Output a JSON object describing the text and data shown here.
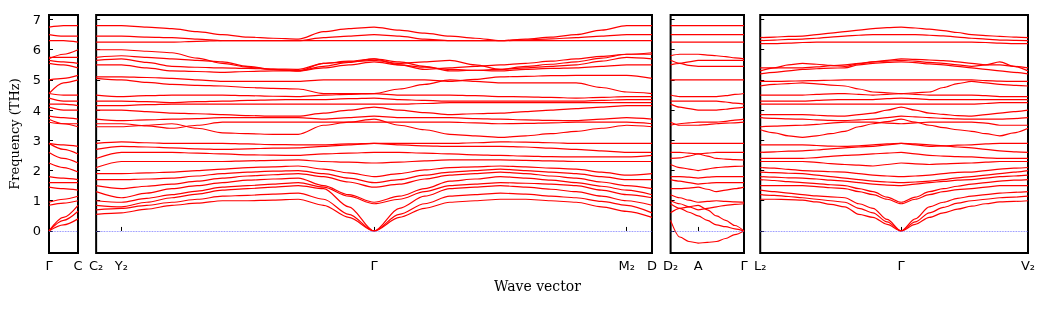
{
  "chart_data": [
    {
      "type": "line",
      "ylabel": "Frequency (THz)",
      "marker": "none",
      "categories": [
        "Γ",
        null,
        "C"
      ],
      "ylim": [
        -0.73,
        7.15
      ],
      "yticks": [
        0,
        1,
        2,
        3,
        4,
        5,
        6,
        7
      ],
      "ref_lines": [
        {
          "axis": "y",
          "value": 0,
          "color": "#6666ff",
          "line_style": "dotted"
        }
      ],
      "series": [
        {
          "color": "#ff0000",
          "values": [
            0,
            0.2,
            0.4
          ]
        },
        {
          "color": "#ff0000",
          "values": [
            0,
            0.35,
            0.65
          ]
        },
        {
          "color": "#ff0000",
          "values": [
            0,
            0.45,
            0.85
          ]
        },
        {
          "color": "#ff0000",
          "values": [
            0.85,
            0.92,
            1.0
          ]
        },
        {
          "color": "#ff0000",
          "values": [
            0.95,
            1.05,
            1.15
          ]
        },
        {
          "color": "#ff0000",
          "values": [
            1.45,
            1.4,
            1.35
          ]
        },
        {
          "color": "#ff0000",
          "values": [
            1.6,
            1.6,
            1.6
          ]
        },
        {
          "color": "#ff0000",
          "values": [
            1.8,
            1.75,
            1.7
          ]
        },
        {
          "color": "#ff0000",
          "values": [
            2.25,
            2.1,
            1.95
          ]
        },
        {
          "color": "#ff0000",
          "values": [
            2.6,
            2.4,
            2.25
          ]
        },
        {
          "color": "#ff0000",
          "values": [
            2.9,
            2.7,
            2.55
          ]
        },
        {
          "color": "#ff0000",
          "values": [
            2.9,
            2.85,
            2.8
          ]
        },
        {
          "color": "#ff0000",
          "values": [
            3.7,
            3.55,
            3.45
          ]
        },
        {
          "color": "#ff0000",
          "values": [
            3.6,
            3.55,
            3.55
          ]
        },
        {
          "color": "#ff0000",
          "values": [
            3.8,
            3.75,
            3.7
          ]
        },
        {
          "color": "#ff0000",
          "values": [
            4.1,
            4.0,
            4.0
          ]
        },
        {
          "color": "#ff0000",
          "values": [
            4.2,
            4.2,
            4.15
          ]
        },
        {
          "color": "#ff0000",
          "values": [
            4.4,
            4.3,
            4.3
          ]
        },
        {
          "color": "#ff0000",
          "values": [
            4.55,
            4.5,
            4.5
          ]
        },
        {
          "color": "#ff0000",
          "values": [
            4.55,
            4.9,
            5.0
          ]
        },
        {
          "color": "#ff0000",
          "values": [
            5.0,
            5.05,
            5.15
          ]
        },
        {
          "color": "#ff0000",
          "values": [
            5.55,
            5.5,
            5.4
          ]
        },
        {
          "color": "#ff0000",
          "values": [
            5.65,
            5.6,
            5.55
          ]
        },
        {
          "color": "#ff0000",
          "values": [
            5.75,
            5.75,
            5.75
          ]
        },
        {
          "color": "#ff0000",
          "values": [
            5.7,
            5.85,
            6.0
          ]
        },
        {
          "color": "#ff0000",
          "values": [
            6.3,
            6.3,
            6.25
          ]
        },
        {
          "color": "#ff0000",
          "values": [
            6.5,
            6.45,
            6.45
          ]
        },
        {
          "color": "#ff0000",
          "values": [
            6.75,
            6.8,
            6.8
          ]
        }
      ]
    },
    {
      "type": "line",
      "xlabel": "Wave vector",
      "marker": "none",
      "tick_labels": "x",
      "categories": [
        "C₂",
        "Y₂",
        null,
        null,
        null,
        null,
        null,
        null,
        null,
        null,
        null,
        "Γ",
        null,
        null,
        null,
        null,
        null,
        null,
        null,
        null,
        null,
        "M₂",
        "D"
      ],
      "ylim": [
        -0.73,
        7.15
      ],
      "yticks": [
        0,
        1,
        2,
        3,
        4,
        5,
        6,
        7
      ],
      "ref_lines": [
        {
          "axis": "y",
          "value": 0,
          "color": "#6666ff",
          "line_style": "dotted"
        }
      ],
      "series": [
        {
          "color": "#ff0000",
          "values": [
            0.55,
            0.6,
            0.72,
            0.85,
            0.92,
            1.0,
            1.0,
            1.02,
            1.05,
            0.85,
            0.45,
            0,
            0.45,
            0.75,
            0.95,
            1.0,
            1.05,
            1.05,
            1.0,
            0.95,
            0.8,
            0.65,
            0.45
          ]
        },
        {
          "color": "#ff0000",
          "values": [
            0.7,
            0.75,
            0.85,
            0.95,
            1.05,
            1.15,
            1.18,
            1.22,
            1.25,
            1.05,
            0.55,
            0,
            0.55,
            0.9,
            1.15,
            1.2,
            1.25,
            1.22,
            1.15,
            1.1,
            0.98,
            0.85,
            0.6
          ]
        },
        {
          "color": "#ff0000",
          "values": [
            0.85,
            0.8,
            0.95,
            1.1,
            1.22,
            1.35,
            1.4,
            1.45,
            1.5,
            1.4,
            0.8,
            0,
            0.75,
            1.15,
            1.4,
            1.45,
            1.5,
            1.45,
            1.38,
            1.3,
            1.15,
            1.0,
            0.85
          ]
        },
        {
          "color": "#ff0000",
          "values": [
            1.0,
            0.95,
            1.08,
            1.2,
            1.32,
            1.45,
            1.5,
            1.55,
            1.6,
            1.45,
            1.15,
            0.9,
            1.05,
            1.3,
            1.5,
            1.55,
            1.6,
            1.58,
            1.55,
            1.5,
            1.35,
            1.2,
            1.1
          ]
        },
        {
          "color": "#ff0000",
          "values": [
            1.3,
            1.1,
            1.25,
            1.4,
            1.5,
            1.6,
            1.68,
            1.72,
            1.75,
            1.5,
            1.2,
            0.95,
            1.15,
            1.4,
            1.65,
            1.72,
            1.8,
            1.75,
            1.68,
            1.6,
            1.48,
            1.35,
            1.2
          ]
        },
        {
          "color": "#ff0000",
          "values": [
            1.5,
            1.4,
            1.48,
            1.55,
            1.65,
            1.75,
            1.82,
            1.86,
            1.9,
            1.8,
            1.62,
            1.45,
            1.55,
            1.72,
            1.85,
            1.9,
            1.95,
            1.9,
            1.82,
            1.75,
            1.62,
            1.5,
            1.4
          ]
        },
        {
          "color": "#ff0000",
          "values": [
            1.7,
            1.7,
            1.72,
            1.75,
            1.82,
            1.9,
            1.95,
            1.98,
            2.0,
            1.9,
            1.75,
            1.6,
            1.7,
            1.85,
            1.95,
            2.0,
            2.05,
            2.0,
            1.95,
            1.9,
            1.8,
            1.7,
            1.7
          ]
        },
        {
          "color": "#ff0000",
          "values": [
            1.9,
            1.9,
            1.92,
            1.95,
            2.0,
            2.05,
            2.1,
            2.12,
            2.15,
            2.05,
            1.92,
            1.8,
            1.9,
            2.02,
            2.1,
            2.12,
            2.15,
            2.12,
            2.08,
            2.05,
            1.95,
            1.85,
            1.9
          ]
        },
        {
          "color": "#ff0000",
          "values": [
            2.1,
            2.3,
            2.3,
            2.3,
            2.3,
            2.3,
            2.32,
            2.34,
            2.35,
            2.3,
            2.28,
            2.25,
            2.28,
            2.32,
            2.35,
            2.35,
            2.35,
            2.34,
            2.32,
            2.3,
            2.3,
            2.3,
            2.3
          ]
        },
        {
          "color": "#ff0000",
          "values": [
            2.4,
            2.6,
            2.6,
            2.6,
            2.58,
            2.55,
            2.52,
            2.51,
            2.5,
            2.55,
            2.58,
            2.6,
            2.6,
            2.58,
            2.55,
            2.52,
            2.5,
            2.48,
            2.46,
            2.45,
            2.45,
            2.45,
            2.5
          ]
        },
        {
          "color": "#ff0000",
          "values": [
            2.7,
            2.8,
            2.78,
            2.75,
            2.72,
            2.7,
            2.72,
            2.74,
            2.75,
            2.8,
            2.85,
            2.9,
            2.85,
            2.82,
            2.8,
            2.8,
            2.8,
            2.78,
            2.74,
            2.7,
            2.65,
            2.6,
            2.6
          ]
        },
        {
          "color": "#ff0000",
          "values": [
            2.9,
            2.95,
            2.92,
            2.9,
            2.9,
            2.9,
            2.88,
            2.86,
            2.85,
            2.85,
            2.88,
            2.9,
            2.9,
            2.9,
            2.9,
            2.92,
            2.95,
            2.94,
            2.92,
            2.9,
            2.9,
            2.9,
            2.9
          ]
        },
        {
          "color": "#ff0000",
          "values": [
            3.45,
            3.45,
            3.5,
            3.55,
            3.4,
            3.25,
            3.22,
            3.2,
            3.2,
            3.5,
            3.6,
            3.7,
            3.5,
            3.35,
            3.2,
            3.15,
            3.1,
            3.15,
            3.22,
            3.3,
            3.4,
            3.5,
            3.45
          ]
        },
        {
          "color": "#ff0000",
          "values": [
            3.55,
            3.55,
            3.48,
            3.4,
            3.5,
            3.6,
            3.6,
            3.6,
            3.6,
            3.6,
            3.6,
            3.6,
            3.6,
            3.6,
            3.6,
            3.58,
            3.55,
            3.56,
            3.58,
            3.6,
            3.6,
            3.6,
            3.55
          ]
        },
        {
          "color": "#ff0000",
          "values": [
            3.7,
            3.65,
            3.68,
            3.7,
            3.72,
            3.75,
            3.75,
            3.75,
            3.75,
            3.7,
            3.75,
            3.8,
            3.75,
            3.75,
            3.75,
            3.72,
            3.7,
            3.68,
            3.66,
            3.65,
            3.7,
            3.75,
            3.7
          ]
        },
        {
          "color": "#ff0000",
          "values": [
            4.0,
            4.0,
            3.95,
            3.9,
            3.88,
            3.85,
            3.82,
            3.8,
            3.8,
            3.9,
            4.0,
            4.1,
            4.0,
            3.92,
            3.85,
            3.88,
            3.9,
            3.95,
            4.0,
            4.05,
            4.1,
            4.15,
            4.15
          ]
        },
        {
          "color": "#ff0000",
          "values": [
            4.15,
            4.15,
            4.18,
            4.2,
            4.2,
            4.2,
            4.2,
            4.2,
            4.2,
            4.2,
            4.2,
            4.2,
            4.2,
            4.22,
            4.25,
            4.25,
            4.25,
            4.25,
            4.25,
            4.25,
            4.25,
            4.25,
            4.25
          ]
        },
        {
          "color": "#ff0000",
          "values": [
            4.3,
            4.3,
            4.28,
            4.25,
            4.28,
            4.3,
            4.32,
            4.34,
            4.35,
            4.35,
            4.38,
            4.4,
            4.35,
            4.32,
            4.3,
            4.3,
            4.3,
            4.3,
            4.3,
            4.3,
            4.32,
            4.35,
            4.35
          ]
        },
        {
          "color": "#ff0000",
          "values": [
            4.5,
            4.45,
            4.48,
            4.5,
            4.5,
            4.5,
            4.48,
            4.46,
            4.45,
            4.5,
            4.52,
            4.55,
            4.5,
            4.5,
            4.5,
            4.48,
            4.45,
            4.44,
            4.42,
            4.4,
            4.42,
            4.45,
            4.45
          ]
        },
        {
          "color": "#ff0000",
          "values": [
            5.05,
            5.0,
            4.92,
            4.85,
            4.82,
            4.8,
            4.75,
            4.72,
            4.7,
            4.55,
            4.55,
            4.55,
            4.7,
            4.85,
            5.0,
            4.95,
            4.9,
            4.9,
            4.9,
            4.9,
            4.75,
            4.6,
            4.55
          ]
        },
        {
          "color": "#ff0000",
          "values": [
            5.1,
            5.1,
            5.08,
            5.05,
            5.0,
            4.95,
            4.95,
            4.95,
            4.95,
            5.0,
            5.0,
            5.0,
            5.0,
            5.0,
            4.95,
            5.02,
            5.1,
            5.12,
            5.14,
            5.15,
            5.15,
            5.15,
            5.05
          ]
        },
        {
          "color": "#ff0000",
          "values": [
            5.5,
            5.5,
            5.4,
            5.3,
            5.28,
            5.25,
            5.28,
            5.3,
            5.3,
            5.4,
            5.5,
            5.6,
            5.5,
            5.42,
            5.35,
            5.32,
            5.3,
            5.35,
            5.38,
            5.4,
            5.45,
            5.5,
            5.5
          ]
        },
        {
          "color": "#ff0000",
          "values": [
            5.65,
            5.7,
            5.58,
            5.45,
            5.42,
            5.4,
            5.38,
            5.36,
            5.35,
            5.55,
            5.6,
            5.65,
            5.55,
            5.6,
            5.65,
            5.5,
            5.35,
            5.4,
            5.45,
            5.5,
            5.62,
            5.75,
            5.7
          ]
        },
        {
          "color": "#ff0000",
          "values": [
            5.75,
            5.8,
            5.75,
            5.7,
            5.65,
            5.6,
            5.45,
            5.35,
            5.3,
            5.55,
            5.62,
            5.7,
            5.6,
            5.45,
            5.3,
            5.32,
            5.35,
            5.45,
            5.52,
            5.6,
            5.72,
            5.85,
            5.85
          ]
        },
        {
          "color": "#ff0000",
          "values": [
            6.0,
            6.0,
            5.95,
            5.9,
            5.72,
            5.55,
            5.42,
            5.35,
            5.3,
            5.45,
            5.58,
            5.7,
            5.5,
            5.35,
            5.4,
            5.45,
            5.5,
            5.55,
            5.62,
            5.7,
            5.78,
            5.85,
            5.9
          ]
        },
        {
          "color": "#ff0000",
          "values": [
            6.25,
            6.25,
            6.25,
            6.25,
            6.28,
            6.3,
            6.3,
            6.3,
            6.3,
            6.3,
            6.3,
            6.3,
            6.3,
            6.3,
            6.3,
            6.3,
            6.3,
            6.3,
            6.3,
            6.3,
            6.3,
            6.3,
            6.3
          ]
        },
        {
          "color": "#ff0000",
          "values": [
            6.45,
            6.45,
            6.42,
            6.4,
            6.35,
            6.3,
            6.3,
            6.3,
            6.3,
            6.4,
            6.45,
            6.5,
            6.45,
            6.35,
            6.3,
            6.3,
            6.3,
            6.32,
            6.36,
            6.4,
            6.45,
            6.5,
            6.5
          ]
        },
        {
          "color": "#ff0000",
          "values": [
            6.8,
            6.8,
            6.75,
            6.7,
            6.6,
            6.5,
            6.42,
            6.38,
            6.35,
            6.6,
            6.7,
            6.75,
            6.65,
            6.55,
            6.45,
            6.38,
            6.3,
            6.35,
            6.42,
            6.5,
            6.65,
            6.8,
            6.8
          ]
        }
      ]
    },
    {
      "type": "line",
      "marker": "none",
      "tick_labels": "x",
      "categories": [
        "D₂",
        null,
        null,
        "A",
        null,
        null,
        null,
        null,
        "Γ"
      ],
      "ylim": [
        -0.73,
        7.15
      ],
      "yticks": [
        0,
        1,
        2,
        3,
        4,
        5,
        6,
        7
      ],
      "ref_lines": [
        {
          "axis": "y",
          "value": 0,
          "color": "#6666ff",
          "line_style": "dotted"
        }
      ],
      "series": [
        {
          "color": "#ff0000",
          "values": [
            0.35,
            -0.2,
            -0.35,
            -0.4,
            -0.38,
            -0.35,
            -0.25,
            -0.12,
            0
          ]
        },
        {
          "color": "#ff0000",
          "values": [
            0.6,
            0.75,
            0.8,
            0.85,
            0.7,
            0.5,
            0.35,
            0.18,
            0
          ]
        },
        {
          "color": "#ff0000",
          "values": [
            0.9,
            0.75,
            0.62,
            0.5,
            0.35,
            0.2,
            0.14,
            0.07,
            0
          ]
        },
        {
          "color": "#ff0000",
          "values": [
            1.0,
            0.9,
            0.8,
            0.7,
            0.75,
            0.8,
            0.85,
            0.88,
            0.9
          ]
        },
        {
          "color": "#ff0000",
          "values": [
            1.2,
            1.1,
            1.02,
            0.95,
            0.98,
            1.0,
            0.98,
            0.96,
            0.95
          ]
        },
        {
          "color": "#ff0000",
          "values": [
            1.4,
            1.4,
            1.42,
            1.45,
            1.38,
            1.3,
            1.35,
            1.4,
            1.45
          ]
        },
        {
          "color": "#ff0000",
          "values": [
            1.7,
            1.65,
            1.6,
            1.55,
            1.58,
            1.6,
            1.6,
            1.6,
            1.6
          ]
        },
        {
          "color": "#ff0000",
          "values": [
            1.8,
            1.8,
            1.78,
            1.75,
            1.78,
            1.8,
            1.8,
            1.8,
            1.8
          ]
        },
        {
          "color": "#ff0000",
          "values": [
            2.2,
            2.1,
            2.05,
            2.0,
            2.05,
            2.1,
            2.12,
            2.14,
            2.15
          ]
        },
        {
          "color": "#ff0000",
          "values": [
            2.4,
            2.42,
            2.48,
            2.55,
            2.48,
            2.4,
            2.38,
            2.36,
            2.35
          ]
        },
        {
          "color": "#ff0000",
          "values": [
            2.6,
            2.6,
            2.58,
            2.55,
            2.58,
            2.6,
            2.6,
            2.6,
            2.6
          ]
        },
        {
          "color": "#ff0000",
          "values": [
            2.9,
            2.9,
            2.9,
            2.9,
            2.9,
            2.9,
            2.9,
            2.9,
            2.9
          ]
        },
        {
          "color": "#ff0000",
          "values": [
            3.5,
            3.55,
            3.58,
            3.6,
            3.6,
            3.6,
            3.63,
            3.67,
            3.7
          ]
        },
        {
          "color": "#ff0000",
          "values": [
            3.6,
            3.5,
            3.5,
            3.5,
            3.52,
            3.55,
            3.57,
            3.58,
            3.6
          ]
        },
        {
          "color": "#ff0000",
          "values": [
            4.2,
            4.1,
            4.05,
            4.0,
            4.0,
            4.0,
            4.03,
            4.07,
            4.1
          ]
        },
        {
          "color": "#ff0000",
          "values": [
            4.3,
            4.3,
            4.3,
            4.3,
            4.3,
            4.3,
            4.27,
            4.23,
            4.2
          ]
        },
        {
          "color": "#ff0000",
          "values": [
            4.5,
            4.45,
            4.45,
            4.45,
            4.45,
            4.45,
            4.48,
            4.52,
            4.55
          ]
        },
        {
          "color": "#ff0000",
          "values": [
            5.0,
            5.0,
            5.0,
            5.0,
            5.0,
            5.0,
            5.0,
            5.0,
            5.0
          ]
        },
        {
          "color": "#ff0000",
          "values": [
            5.65,
            5.55,
            5.48,
            5.45,
            5.45,
            5.45,
            5.45,
            5.45,
            5.45
          ]
        },
        {
          "color": "#ff0000",
          "values": [
            5.5,
            5.55,
            5.6,
            5.65,
            5.65,
            5.65,
            5.65,
            5.65,
            5.65
          ]
        },
        {
          "color": "#ff0000",
          "values": [
            5.8,
            5.85,
            5.85,
            5.85,
            5.82,
            5.8,
            5.77,
            5.73,
            5.7
          ]
        },
        {
          "color": "#ff0000",
          "values": [
            6.25,
            6.25,
            6.25,
            6.25,
            6.25,
            6.25,
            6.25,
            6.25,
            6.25
          ]
        },
        {
          "color": "#ff0000",
          "values": [
            6.5,
            6.5,
            6.5,
            6.5,
            6.5,
            6.5,
            6.5,
            6.5,
            6.5
          ]
        },
        {
          "color": "#ff0000",
          "values": [
            6.8,
            6.8,
            6.8,
            6.8,
            6.8,
            6.8,
            6.8,
            6.8,
            6.8
          ]
        }
      ]
    },
    {
      "type": "line",
      "marker": "none",
      "tick_labels": "x",
      "categories": [
        "L₂",
        null,
        null,
        null,
        null,
        null,
        null,
        null,
        null,
        null,
        "Γ",
        null,
        null,
        null,
        null,
        null,
        null,
        null,
        null,
        "V₂"
      ],
      "ylim": [
        -0.73,
        7.15
      ],
      "yticks": [
        0,
        1,
        2,
        3,
        4,
        5,
        6,
        7
      ],
      "ref_lines": [
        {
          "axis": "y",
          "value": 0,
          "color": "#6666ff",
          "line_style": "dotted"
        }
      ],
      "series": [
        {
          "color": "#ff0000",
          "values": [
            1.05,
            1.05,
            1.04,
            1.02,
            0.96,
            0.88,
            0.8,
            0.55,
            0.45,
            0.22,
            0,
            0.22,
            0.45,
            0.6,
            0.72,
            0.82,
            0.9,
            0.96,
            0.98,
            1.0
          ]
        },
        {
          "color": "#ff0000",
          "values": [
            1.2,
            1.18,
            1.14,
            1.1,
            1.05,
            1.0,
            0.95,
            0.75,
            0.6,
            0.3,
            0,
            0.3,
            0.6,
            0.78,
            0.92,
            1.0,
            1.05,
            1.1,
            1.12,
            1.15
          ]
        },
        {
          "color": "#ff0000",
          "values": [
            1.35,
            1.3,
            1.25,
            1.2,
            1.16,
            1.13,
            1.1,
            0.9,
            0.75,
            0.38,
            0,
            0.4,
            0.8,
            0.95,
            1.08,
            1.15,
            1.2,
            1.25,
            1.28,
            1.3
          ]
        },
        {
          "color": "#ff0000",
          "values": [
            1.5,
            1.5,
            1.5,
            1.5,
            1.47,
            1.43,
            1.4,
            1.3,
            1.2,
            1.05,
            0.9,
            1.05,
            1.2,
            1.3,
            1.37,
            1.4,
            1.45,
            1.5,
            1.5,
            1.5
          ]
        },
        {
          "color": "#ff0000",
          "values": [
            1.7,
            1.67,
            1.63,
            1.6,
            1.57,
            1.53,
            1.5,
            1.4,
            1.3,
            1.12,
            0.95,
            1.12,
            1.3,
            1.4,
            1.48,
            1.55,
            1.6,
            1.65,
            1.68,
            1.7
          ]
        },
        {
          "color": "#ff0000",
          "values": [
            1.8,
            1.78,
            1.76,
            1.75,
            1.72,
            1.68,
            1.65,
            1.6,
            1.55,
            1.52,
            1.5,
            1.55,
            1.6,
            1.64,
            1.68,
            1.7,
            1.75,
            1.8,
            1.82,
            1.85
          ]
        },
        {
          "color": "#ff0000",
          "values": [
            1.95,
            1.93,
            1.91,
            1.9,
            1.85,
            1.8,
            1.75,
            1.7,
            1.65,
            1.62,
            1.6,
            1.62,
            1.65,
            1.7,
            1.76,
            1.8,
            1.85,
            1.9,
            1.95,
            2.0
          ]
        },
        {
          "color": "#ff0000",
          "values": [
            2.1,
            2.08,
            2.04,
            2.0,
            1.98,
            1.96,
            1.95,
            1.9,
            1.85,
            1.82,
            1.8,
            1.82,
            1.85,
            1.9,
            1.94,
            1.95,
            2.0,
            2.05,
            2.08,
            2.1
          ]
        },
        {
          "color": "#ff0000",
          "values": [
            2.3,
            2.3,
            2.3,
            2.3,
            2.27,
            2.23,
            2.2,
            2.18,
            2.15,
            2.2,
            2.25,
            2.22,
            2.2,
            2.22,
            2.24,
            2.25,
            2.28,
            2.3,
            2.3,
            2.3
          ]
        },
        {
          "color": "#ff0000",
          "values": [
            2.4,
            2.4,
            2.4,
            2.4,
            2.43,
            2.47,
            2.5,
            2.52,
            2.55,
            2.58,
            2.6,
            2.55,
            2.5,
            2.48,
            2.46,
            2.45,
            2.42,
            2.4,
            2.4,
            2.4
          ]
        },
        {
          "color": "#ff0000",
          "values": [
            2.6,
            2.62,
            2.64,
            2.65,
            2.68,
            2.72,
            2.75,
            2.78,
            2.8,
            2.85,
            2.9,
            2.88,
            2.85,
            2.82,
            2.78,
            2.75,
            2.7,
            2.65,
            2.62,
            2.6
          ]
        },
        {
          "color": "#ff0000",
          "values": [
            2.85,
            2.85,
            2.85,
            2.85,
            2.83,
            2.81,
            2.8,
            2.82,
            2.85,
            2.88,
            2.9,
            2.85,
            2.8,
            2.82,
            2.84,
            2.85,
            2.88,
            2.9,
            2.9,
            2.9
          ]
        },
        {
          "color": "#ff0000",
          "values": [
            3.35,
            3.25,
            3.15,
            3.1,
            3.15,
            3.22,
            3.3,
            3.45,
            3.55,
            3.62,
            3.7,
            3.6,
            3.5,
            3.42,
            3.35,
            3.3,
            3.22,
            3.15,
            3.25,
            3.4
          ]
        },
        {
          "color": "#ff0000",
          "values": [
            3.45,
            3.47,
            3.49,
            3.5,
            3.53,
            3.57,
            3.6,
            3.6,
            3.6,
            3.57,
            3.55,
            3.58,
            3.6,
            3.6,
            3.6,
            3.6,
            3.57,
            3.5,
            3.5,
            3.5
          ]
        },
        {
          "color": "#ff0000",
          "values": [
            3.75,
            3.73,
            3.71,
            3.7,
            3.68,
            3.66,
            3.65,
            3.68,
            3.7,
            3.75,
            3.8,
            3.78,
            3.75,
            3.73,
            3.71,
            3.7,
            3.7,
            3.7,
            3.72,
            3.75
          ]
        },
        {
          "color": "#ff0000",
          "values": [
            3.85,
            3.85,
            3.85,
            3.85,
            3.83,
            3.81,
            3.8,
            3.85,
            3.9,
            4.0,
            4.1,
            4.0,
            3.9,
            3.86,
            3.82,
            3.8,
            3.85,
            3.9,
            3.95,
            4.0
          ]
        },
        {
          "color": "#ff0000",
          "values": [
            4.2,
            4.2,
            4.2,
            4.2,
            4.2,
            4.2,
            4.2,
            4.2,
            4.2,
            4.2,
            4.2,
            4.2,
            4.2,
            4.2,
            4.2,
            4.2,
            4.22,
            4.25,
            4.25,
            4.25
          ]
        },
        {
          "color": "#ff0000",
          "values": [
            4.3,
            4.3,
            4.3,
            4.3,
            4.32,
            4.34,
            4.35,
            4.35,
            4.35,
            4.38,
            4.4,
            4.38,
            4.35,
            4.35,
            4.35,
            4.35,
            4.35,
            4.35,
            4.35,
            4.35
          ]
        },
        {
          "color": "#ff0000",
          "values": [
            4.5,
            4.5,
            4.5,
            4.5,
            4.52,
            4.54,
            4.55,
            4.52,
            4.5,
            4.52,
            4.55,
            4.52,
            4.5,
            4.5,
            4.5,
            4.5,
            4.48,
            4.45,
            4.45,
            4.45
          ]
        },
        {
          "color": "#ff0000",
          "values": [
            4.8,
            4.85,
            4.88,
            4.9,
            4.87,
            4.83,
            4.8,
            4.7,
            4.6,
            4.57,
            4.55,
            4.57,
            4.6,
            4.75,
            4.88,
            4.95,
            4.9,
            4.85,
            4.82,
            4.8
          ]
        },
        {
          "color": "#ff0000",
          "values": [
            4.95,
            4.95,
            4.96,
            4.97,
            4.98,
            4.99,
            5.0,
            5.0,
            5.0,
            5.0,
            5.0,
            5.0,
            5.0,
            5.0,
            5.0,
            5.0,
            4.98,
            4.96,
            4.95,
            4.95
          ]
        },
        {
          "color": "#ff0000",
          "values": [
            5.2,
            5.25,
            5.3,
            5.35,
            5.37,
            5.39,
            5.4,
            5.5,
            5.55,
            5.58,
            5.6,
            5.57,
            5.53,
            5.5,
            5.45,
            5.4,
            5.35,
            5.3,
            5.25,
            5.2
          ]
        },
        {
          "color": "#ff0000",
          "values": [
            5.3,
            5.4,
            5.5,
            5.55,
            5.52,
            5.48,
            5.45,
            5.53,
            5.6,
            5.62,
            5.65,
            5.62,
            5.58,
            5.55,
            5.5,
            5.45,
            5.5,
            5.6,
            5.45,
            5.3
          ]
        },
        {
          "color": "#ff0000",
          "values": [
            5.4,
            5.4,
            5.4,
            5.4,
            5.43,
            5.47,
            5.5,
            5.55,
            5.6,
            5.65,
            5.7,
            5.68,
            5.66,
            5.64,
            5.6,
            5.55,
            5.5,
            5.5,
            5.45,
            5.4
          ]
        },
        {
          "color": "#ff0000",
          "values": [
            6.2,
            6.2,
            6.22,
            6.24,
            6.25,
            6.25,
            6.25,
            6.25,
            6.25,
            6.25,
            6.25,
            6.25,
            6.25,
            6.25,
            6.25,
            6.25,
            6.24,
            6.22,
            6.2,
            6.2
          ]
        },
        {
          "color": "#ff0000",
          "values": [
            6.3,
            6.32,
            6.34,
            6.35,
            6.38,
            6.42,
            6.45,
            6.48,
            6.5,
            6.5,
            6.5,
            6.5,
            6.48,
            6.46,
            6.42,
            6.38,
            6.35,
            6.32,
            6.31,
            6.3
          ]
        },
        {
          "color": "#ff0000",
          "values": [
            6.4,
            6.42,
            6.44,
            6.45,
            6.5,
            6.55,
            6.6,
            6.65,
            6.7,
            6.73,
            6.75,
            6.72,
            6.68,
            6.63,
            6.57,
            6.5,
            6.47,
            6.44,
            6.42,
            6.4
          ]
        }
      ]
    }
  ]
}
